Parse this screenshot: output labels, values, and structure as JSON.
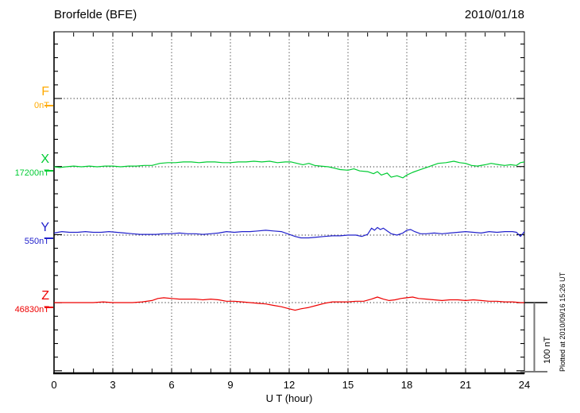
{
  "header": {
    "title": "Brorfelde (BFE)",
    "date": "2010/01/18"
  },
  "channels": [
    {
      "id": "F",
      "label": "F",
      "baseline_label": "0nT",
      "color": "#FFAA00"
    },
    {
      "id": "X",
      "label": "X",
      "baseline_label": "17200nT",
      "color": "#00CC33"
    },
    {
      "id": "Y",
      "label": "Y",
      "baseline_label": "550nT",
      "color": "#2222CC"
    },
    {
      "id": "Z",
      "label": "Z",
      "baseline_label": "46830nT",
      "color": "#EE0000"
    }
  ],
  "x_axis": {
    "ticks": [
      "0",
      "3",
      "6",
      "9",
      "12",
      "15",
      "18",
      "21",
      "24"
    ],
    "label": "U T (hour)"
  },
  "scale_bar": {
    "label": "100 nT",
    "nT": 100
  },
  "footer_note": "Plotted at 2010/09/16 15:26 UT",
  "chart_data": {
    "type": "line",
    "title": "Brorfelde (BFE) magnetogram 2010/01/18",
    "xlabel": "U T (hour)",
    "x_range": [
      0,
      24
    ],
    "grid": "dotted vertical every 3 h, dotted horizontal at each channel baseline",
    "scale_nT_per_division": 100,
    "legend_position": "left margin channel labels",
    "series": [
      {
        "name": "F",
        "baseline_nT": 0,
        "color": "#FFAA00",
        "points": []
      },
      {
        "name": "X",
        "baseline_nT": 17200,
        "color": "#00CC33",
        "points": [
          [
            0,
            0
          ],
          [
            0.3,
            -1
          ],
          [
            0.6,
            0
          ],
          [
            1,
            1
          ],
          [
            1.4,
            0
          ],
          [
            1.8,
            1
          ],
          [
            2.2,
            0
          ],
          [
            2.6,
            1
          ],
          [
            3,
            1
          ],
          [
            3.4,
            0
          ],
          [
            3.8,
            1
          ],
          [
            4.2,
            1
          ],
          [
            4.6,
            2
          ],
          [
            5,
            2
          ],
          [
            5.4,
            5
          ],
          [
            5.8,
            6
          ],
          [
            6.2,
            6
          ],
          [
            6.6,
            7
          ],
          [
            7,
            7
          ],
          [
            7.4,
            6
          ],
          [
            7.8,
            7
          ],
          [
            8.2,
            7
          ],
          [
            8.6,
            6
          ],
          [
            9,
            6
          ],
          [
            9.4,
            7
          ],
          [
            9.8,
            7
          ],
          [
            10.2,
            8
          ],
          [
            10.6,
            7
          ],
          [
            11,
            8
          ],
          [
            11.4,
            6
          ],
          [
            11.8,
            7
          ],
          [
            12.1,
            7
          ],
          [
            12.4,
            5
          ],
          [
            12.7,
            3
          ],
          [
            13,
            5
          ],
          [
            13.3,
            2
          ],
          [
            13.6,
            1
          ],
          [
            14,
            0
          ],
          [
            14.3,
            -2
          ],
          [
            14.6,
            -4
          ],
          [
            15,
            -5
          ],
          [
            15.3,
            -3
          ],
          [
            15.6,
            -6
          ],
          [
            16,
            -7
          ],
          [
            16.3,
            -10
          ],
          [
            16.5,
            -7
          ],
          [
            16.7,
            -12
          ],
          [
            17,
            -9
          ],
          [
            17.2,
            -15
          ],
          [
            17.5,
            -13
          ],
          [
            17.8,
            -16
          ],
          [
            18,
            -12
          ],
          [
            18.3,
            -8
          ],
          [
            18.6,
            -5
          ],
          [
            19,
            -1
          ],
          [
            19.3,
            2
          ],
          [
            19.6,
            5
          ],
          [
            20,
            6
          ],
          [
            20.4,
            8
          ],
          [
            20.7,
            6
          ],
          [
            21,
            5
          ],
          [
            21.3,
            2
          ],
          [
            21.6,
            1
          ],
          [
            22,
            3
          ],
          [
            22.3,
            5
          ],
          [
            22.7,
            3
          ],
          [
            23,
            2
          ],
          [
            23.3,
            3
          ],
          [
            23.6,
            2
          ],
          [
            23.8,
            6
          ],
          [
            24,
            7
          ]
        ]
      },
      {
        "name": "Y",
        "baseline_nT": 550,
        "color": "#2222CC",
        "points": [
          [
            0,
            3
          ],
          [
            0.4,
            5
          ],
          [
            0.8,
            4
          ],
          [
            1.2,
            4
          ],
          [
            1.6,
            5
          ],
          [
            2,
            4
          ],
          [
            2.4,
            4
          ],
          [
            2.8,
            5
          ],
          [
            3.2,
            4
          ],
          [
            3.6,
            3
          ],
          [
            4,
            2
          ],
          [
            4.4,
            1
          ],
          [
            4.8,
            1
          ],
          [
            5.2,
            1
          ],
          [
            5.6,
            2
          ],
          [
            6,
            2
          ],
          [
            6.4,
            3
          ],
          [
            6.8,
            2
          ],
          [
            7.2,
            2
          ],
          [
            7.6,
            1
          ],
          [
            8,
            2
          ],
          [
            8.4,
            3
          ],
          [
            8.8,
            5
          ],
          [
            9.2,
            4
          ],
          [
            9.6,
            5
          ],
          [
            10,
            5
          ],
          [
            10.4,
            6
          ],
          [
            10.8,
            7
          ],
          [
            11.2,
            6
          ],
          [
            11.6,
            5
          ],
          [
            12,
            1
          ],
          [
            12.3,
            -2
          ],
          [
            12.6,
            -4
          ],
          [
            13,
            -4
          ],
          [
            13.4,
            -3
          ],
          [
            13.8,
            -2
          ],
          [
            14.2,
            -1
          ],
          [
            14.6,
            -1
          ],
          [
            15,
            0
          ],
          [
            15.4,
            0
          ],
          [
            15.7,
            -2
          ],
          [
            16,
            1
          ],
          [
            16.2,
            10
          ],
          [
            16.35,
            7
          ],
          [
            16.5,
            11
          ],
          [
            16.65,
            8
          ],
          [
            16.8,
            10
          ],
          [
            17,
            6
          ],
          [
            17.2,
            2
          ],
          [
            17.5,
            0
          ],
          [
            17.8,
            3
          ],
          [
            18,
            7
          ],
          [
            18.2,
            8
          ],
          [
            18.4,
            5
          ],
          [
            18.7,
            2
          ],
          [
            19,
            2
          ],
          [
            19.4,
            3
          ],
          [
            19.8,
            2
          ],
          [
            20.2,
            3
          ],
          [
            20.6,
            4
          ],
          [
            21,
            5
          ],
          [
            21.4,
            4
          ],
          [
            21.8,
            3
          ],
          [
            22.2,
            5
          ],
          [
            22.6,
            4
          ],
          [
            23,
            5
          ],
          [
            23.4,
            5
          ],
          [
            23.6,
            4
          ],
          [
            23.8,
            -2
          ],
          [
            24,
            5
          ]
        ]
      },
      {
        "name": "Z",
        "baseline_nT": 46830,
        "color": "#EE0000",
        "points": [
          [
            0,
            0
          ],
          [
            0.5,
            0
          ],
          [
            1,
            0
          ],
          [
            1.5,
            0
          ],
          [
            2,
            0
          ],
          [
            2.5,
            1
          ],
          [
            3,
            0
          ],
          [
            3.5,
            0
          ],
          [
            4,
            0
          ],
          [
            4.5,
            1
          ],
          [
            5,
            3
          ],
          [
            5.3,
            6
          ],
          [
            5.6,
            7
          ],
          [
            6,
            6
          ],
          [
            6.4,
            5
          ],
          [
            6.8,
            5
          ],
          [
            7.2,
            5
          ],
          [
            7.6,
            4
          ],
          [
            8,
            5
          ],
          [
            8.4,
            4
          ],
          [
            8.8,
            2
          ],
          [
            9.2,
            2
          ],
          [
            9.6,
            1
          ],
          [
            10,
            0
          ],
          [
            10.4,
            -1
          ],
          [
            10.8,
            -2
          ],
          [
            11.2,
            -4
          ],
          [
            11.6,
            -6
          ],
          [
            12,
            -9
          ],
          [
            12.3,
            -11
          ],
          [
            12.6,
            -9
          ],
          [
            13,
            -7
          ],
          [
            13.4,
            -4
          ],
          [
            13.8,
            -1
          ],
          [
            14.2,
            1
          ],
          [
            14.6,
            1
          ],
          [
            15,
            1
          ],
          [
            15.4,
            2
          ],
          [
            15.8,
            2
          ],
          [
            16.2,
            5
          ],
          [
            16.5,
            8
          ],
          [
            16.8,
            5
          ],
          [
            17.1,
            3
          ],
          [
            17.4,
            4
          ],
          [
            17.7,
            6
          ],
          [
            18,
            7
          ],
          [
            18.3,
            8
          ],
          [
            18.6,
            6
          ],
          [
            19,
            5
          ],
          [
            19.4,
            4
          ],
          [
            19.8,
            3
          ],
          [
            20.2,
            4
          ],
          [
            20.6,
            4
          ],
          [
            21,
            3
          ],
          [
            21.4,
            4
          ],
          [
            21.8,
            3
          ],
          [
            22.2,
            2
          ],
          [
            22.6,
            2
          ],
          [
            23,
            1
          ],
          [
            23.4,
            1
          ],
          [
            23.8,
            0
          ],
          [
            24,
            0
          ]
        ]
      }
    ]
  }
}
